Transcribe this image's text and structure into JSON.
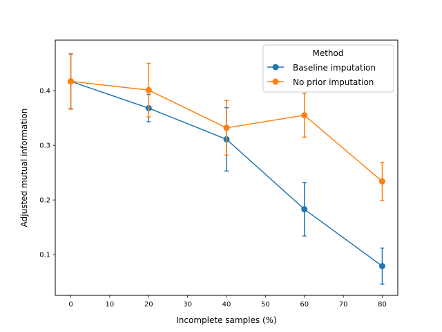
{
  "chart_data": {
    "type": "line",
    "title": "",
    "xlabel": "Incomplete samples (%)",
    "ylabel": "Adjusted mutual information",
    "xlim": [
      -4,
      84
    ],
    "ylim": [
      0.0255,
      0.4925
    ],
    "xticks": [
      0,
      10,
      20,
      30,
      40,
      50,
      60,
      70,
      80
    ],
    "yticks": [
      0.1,
      0.2,
      0.3,
      0.4
    ],
    "ytick_labels": [
      "0.1",
      "0.2",
      "0.3",
      "0.4"
    ],
    "grid": false,
    "legend": {
      "title": "Method",
      "placement": "top-right"
    },
    "series": [
      {
        "name": "Baseline imputation",
        "color": "#1f77b4",
        "x": [
          0,
          20,
          40,
          60,
          80
        ],
        "y": [
          0.417,
          0.368,
          0.311,
          0.183,
          0.079
        ],
        "err": [
          0.05,
          0.025,
          0.058,
          0.049,
          0.033
        ]
      },
      {
        "name": "No prior imputation",
        "color": "#ff7f0e",
        "x": [
          0,
          20,
          40,
          60,
          80
        ],
        "y": [
          0.417,
          0.401,
          0.332,
          0.355,
          0.234
        ],
        "err": [
          0.051,
          0.049,
          0.05,
          0.04,
          0.035
        ]
      }
    ]
  }
}
